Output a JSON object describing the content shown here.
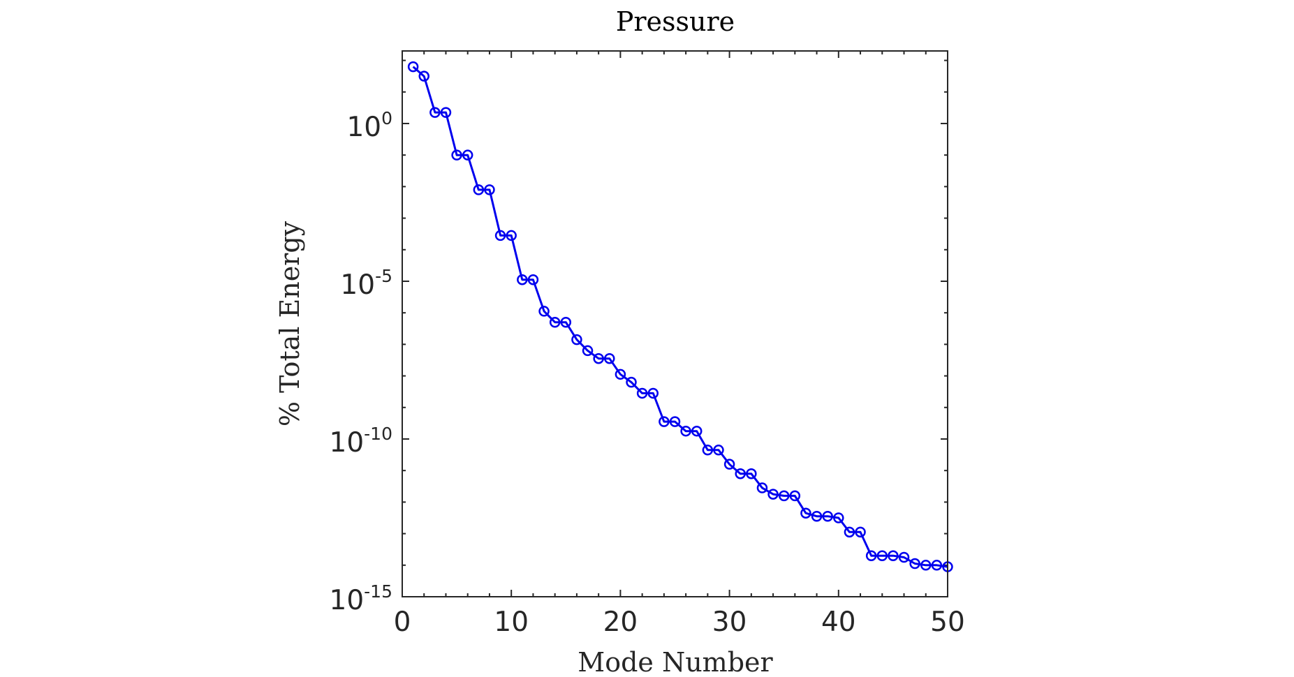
{
  "chart_data": {
    "type": "line",
    "title": "Pressure",
    "xlabel": "Mode Number",
    "ylabel": "% Total Energy",
    "xlim": [
      0,
      50
    ],
    "ylim_log10": [
      -15,
      2.3
    ],
    "yscale": "log",
    "grid": false,
    "x_ticks": [
      {
        "value": 0,
        "label": "0"
      },
      {
        "value": 10,
        "label": "10"
      },
      {
        "value": 20,
        "label": "20"
      },
      {
        "value": 30,
        "label": "30"
      },
      {
        "value": 40,
        "label": "40"
      },
      {
        "value": 50,
        "label": "50"
      }
    ],
    "y_ticks": [
      {
        "exp": 0,
        "base": "10",
        "exp_label": "0"
      },
      {
        "exp": -5,
        "base": "10",
        "exp_label": "-5"
      },
      {
        "exp": -10,
        "base": "10",
        "exp_label": "-10"
      },
      {
        "exp": -15,
        "base": "10",
        "exp_label": "-15"
      }
    ],
    "series": [
      {
        "color": "#0000ee",
        "marker": "circle",
        "x": [
          1,
          2,
          3,
          4,
          5,
          6,
          7,
          8,
          9,
          10,
          11,
          12,
          13,
          14,
          15,
          16,
          17,
          18,
          19,
          20,
          21,
          22,
          23,
          24,
          25,
          26,
          27,
          28,
          29,
          30,
          31,
          32,
          33,
          34,
          35,
          36,
          37,
          38,
          39,
          40,
          41,
          42,
          43,
          44,
          45,
          46,
          47,
          48,
          49,
          50
        ],
        "log10_y": [
          1.8,
          1.5,
          0.35,
          0.35,
          -1.0,
          -1.0,
          -2.1,
          -2.1,
          -3.55,
          -3.55,
          -4.95,
          -4.95,
          -5.95,
          -6.3,
          -6.3,
          -6.85,
          -7.2,
          -7.45,
          -7.45,
          -7.95,
          -8.2,
          -8.55,
          -8.55,
          -9.45,
          -9.45,
          -9.75,
          -9.75,
          -10.35,
          -10.35,
          -10.8,
          -11.1,
          -11.1,
          -11.55,
          -11.75,
          -11.8,
          -11.8,
          -12.35,
          -12.45,
          -12.45,
          -12.5,
          -12.95,
          -12.95,
          -13.7,
          -13.7,
          -13.7,
          -13.75,
          -13.95,
          -14.0,
          -14.0,
          -14.05
        ]
      }
    ]
  }
}
